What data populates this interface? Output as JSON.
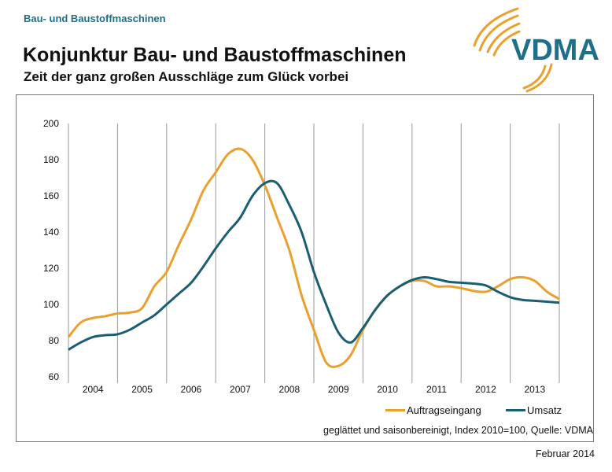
{
  "header": {
    "section": "Bau- und Baustoffmaschinen",
    "title": "Konjunktur Bau- und Baustoffmaschinen",
    "subtitle": "Zeit der ganz großen Ausschläge zum Glück vorbei",
    "logo_text": "VDMA"
  },
  "footer": {
    "note": "geglättet und saisonbereinigt, Index 2010=100, Quelle: VDMA",
    "date": "Februar 2014"
  },
  "colors": {
    "orange": "#E9A02C",
    "blue": "#195E74",
    "brand": "#1d6f8a"
  },
  "chart_data": {
    "type": "line",
    "ylim": [
      60,
      200
    ],
    "yticks": [
      60,
      80,
      100,
      120,
      140,
      160,
      180,
      200
    ],
    "xlim": [
      2004,
      2014
    ],
    "categories": [
      "2004",
      "2005",
      "2006",
      "2007",
      "2008",
      "2009",
      "2010",
      "2011",
      "2012",
      "2013"
    ],
    "grid": "vertical",
    "legend": "bottom-right",
    "x": [
      2004.0,
      2004.25,
      2004.5,
      2004.75,
      2005.0,
      2005.25,
      2005.5,
      2005.75,
      2006.0,
      2006.25,
      2006.5,
      2006.75,
      2007.0,
      2007.25,
      2007.5,
      2007.75,
      2008.0,
      2008.25,
      2008.5,
      2008.75,
      2009.0,
      2009.25,
      2009.5,
      2009.75,
      2010.0,
      2010.25,
      2010.5,
      2010.75,
      2011.0,
      2011.25,
      2011.5,
      2011.75,
      2012.0,
      2012.25,
      2012.5,
      2012.75,
      2013.0,
      2013.25,
      2013.5,
      2013.75,
      2014.0
    ],
    "series": [
      {
        "name": "Auftragseingang",
        "color": "#E9A02C",
        "values": [
          82,
          90,
          92.5,
          93.5,
          95,
          95.5,
          98,
          110,
          118,
          133,
          147,
          163,
          173,
          183,
          186,
          180,
          166,
          148,
          130,
          105,
          86,
          68,
          66,
          72,
          86,
          97,
          105,
          110,
          113,
          113,
          110,
          110,
          109,
          107.5,
          107,
          110,
          114,
          115,
          113,
          107,
          103
        ]
      },
      {
        "name": "Umsatz",
        "color": "#195E74",
        "values": [
          75,
          79,
          82,
          83,
          83.5,
          86,
          90,
          94,
          100,
          106,
          112,
          121,
          131,
          140,
          148,
          160,
          167,
          167,
          155,
          140,
          118,
          100,
          84.5,
          79,
          87,
          97,
          105,
          110,
          113.5,
          115,
          114,
          112.5,
          112,
          111.5,
          110.5,
          107,
          104,
          102.5,
          102,
          101.5,
          101
        ]
      }
    ]
  }
}
